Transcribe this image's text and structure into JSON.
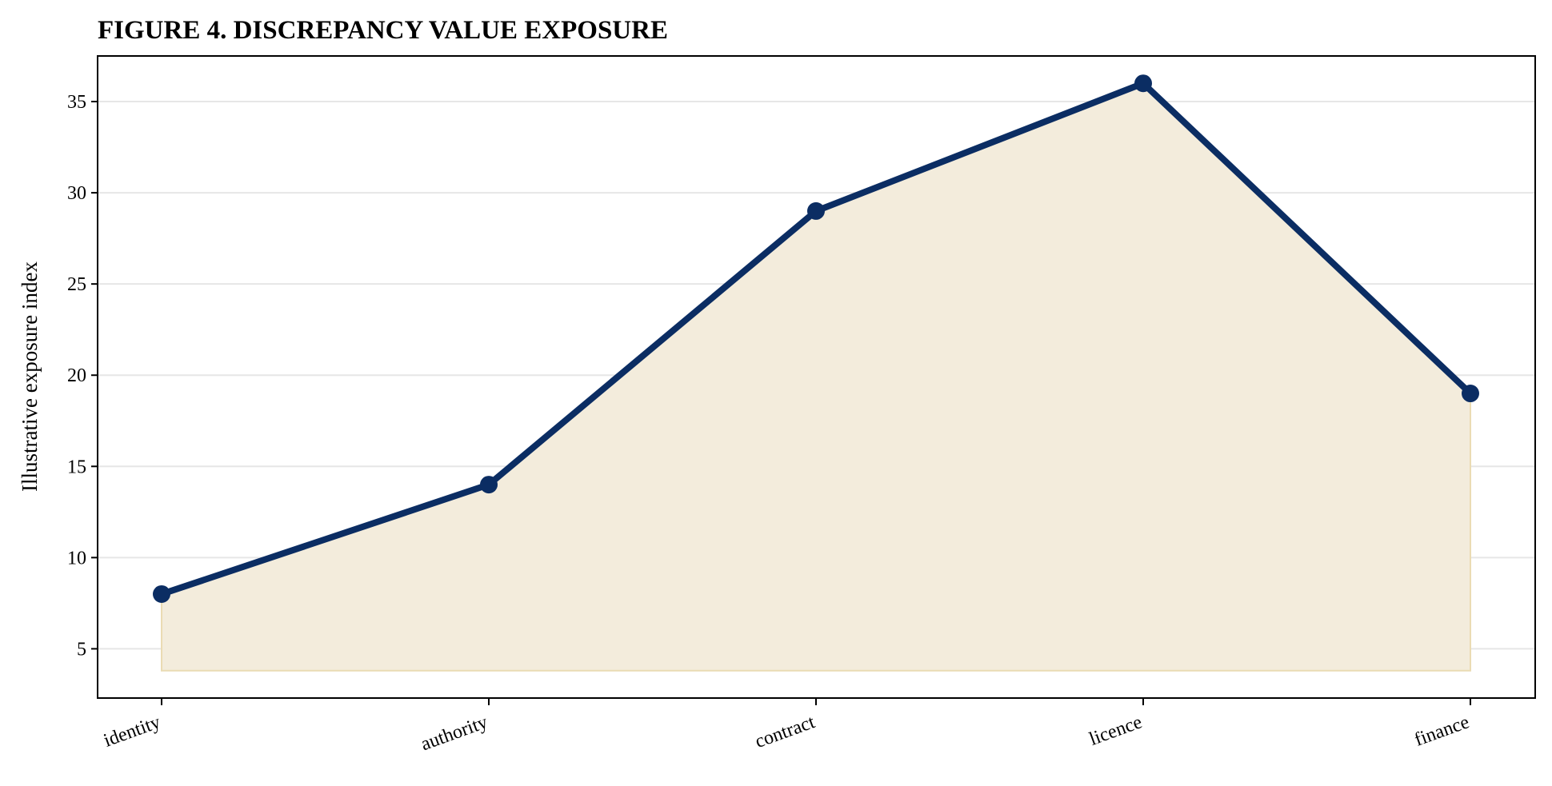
{
  "chart_data": {
    "type": "area",
    "title": "FIGURE 4. DISCREPANCY VALUE EXPOSURE",
    "xlabel": "",
    "ylabel": "Illustrative exposure index",
    "categories": [
      "identity",
      "authority",
      "contract",
      "licence",
      "finance"
    ],
    "series": [
      {
        "values": [
          8,
          14,
          29,
          36,
          19
        ]
      }
    ],
    "fill_baseline": 3.8,
    "ylim": [
      2.3,
      37.5
    ],
    "yticks": [
      5,
      10,
      15,
      20,
      25,
      30,
      35
    ],
    "grid": "horizontal",
    "legend": "none",
    "colors": {
      "line": "#0b2d63",
      "fill": "#f3ecdc",
      "fill_edge": "#eadbb3",
      "grid": "#e6e6e6",
      "axes": "#000000"
    }
  }
}
